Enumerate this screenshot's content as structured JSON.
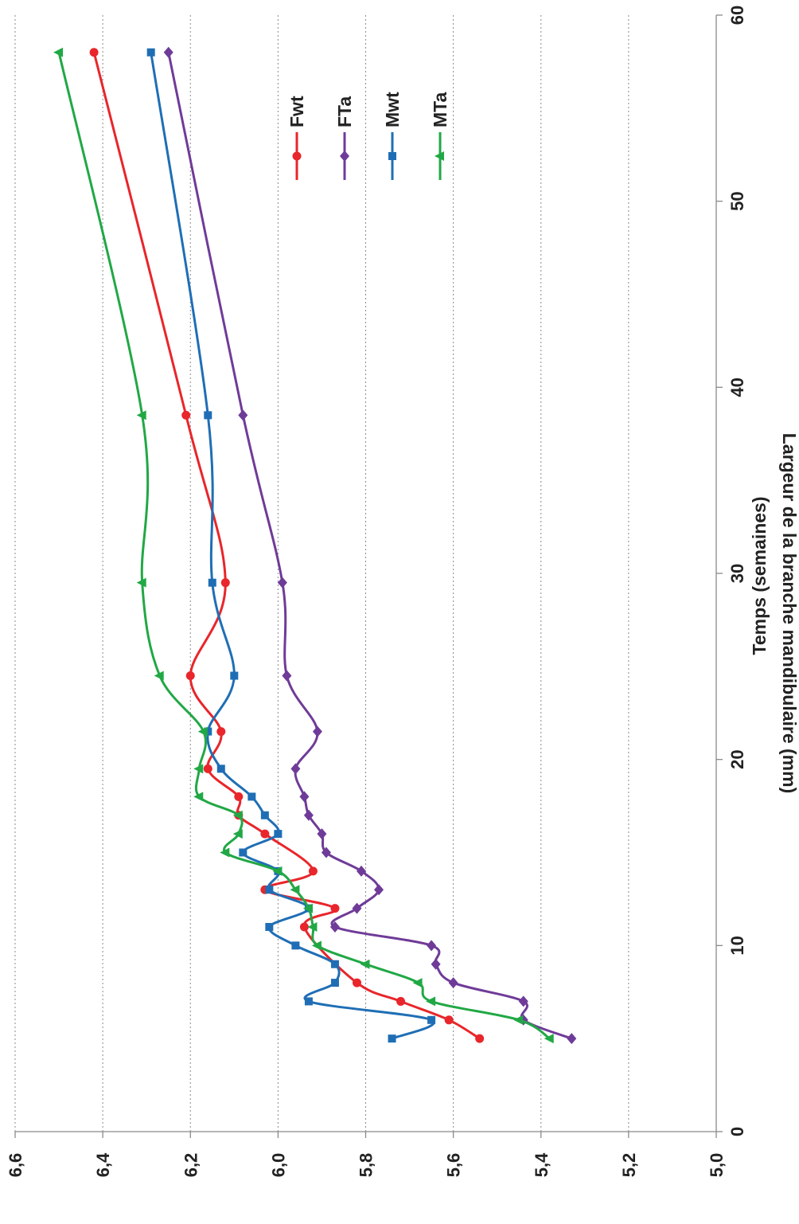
{
  "chart_data": {
    "type": "line",
    "orientation": "rotated-90-clockwise",
    "xlabel": "Temps (semaines)",
    "ylabel": "Largeur de la branche mandibulaire (mm)",
    "xlim": [
      0,
      60
    ],
    "ylim": [
      5.0,
      6.6
    ],
    "x_ticks": [
      "0",
      "10",
      "20",
      "30",
      "40",
      "50",
      "60"
    ],
    "y_ticks": [
      "5,0",
      "5,2",
      "5,4",
      "5,6",
      "5,8",
      "6,0",
      "6,2",
      "6,4",
      "6,6"
    ],
    "grid": "horizontal dotted",
    "legend_position": "top-right",
    "series": [
      {
        "name": "Fwt",
        "color": "#e8262b",
        "marker": "circle",
        "x": [
          5,
          6,
          7,
          8,
          11,
          12,
          13,
          14,
          16,
          17,
          18,
          19.5,
          21.5,
          24.5,
          29.5,
          38.5,
          58
        ],
        "y": [
          5.54,
          5.61,
          5.72,
          5.82,
          5.94,
          5.87,
          6.03,
          5.92,
          6.03,
          6.09,
          6.09,
          6.16,
          6.13,
          6.2,
          6.12,
          6.21,
          6.42
        ]
      },
      {
        "name": "FTa",
        "color": "#6f3b98",
        "marker": "diamond",
        "x": [
          5,
          6,
          7,
          8,
          9,
          10,
          11,
          12,
          13,
          14,
          15,
          16,
          17,
          18,
          19.5,
          21.5,
          24.5,
          29.5,
          38.5,
          58
        ],
        "y": [
          5.33,
          5.44,
          5.44,
          5.6,
          5.64,
          5.65,
          5.87,
          5.82,
          5.77,
          5.81,
          5.89,
          5.9,
          5.93,
          5.94,
          5.96,
          5.91,
          5.98,
          5.99,
          6.08,
          6.25
        ]
      },
      {
        "name": "Mwt",
        "color": "#1f6eb5",
        "marker": "square",
        "x": [
          5,
          6,
          7,
          8,
          9,
          10,
          11,
          12,
          13,
          14,
          15,
          16,
          17,
          18,
          19.5,
          21.5,
          24.5,
          29.5,
          38.5,
          58
        ],
        "y": [
          5.74,
          5.65,
          5.93,
          5.87,
          5.87,
          5.96,
          6.02,
          5.93,
          6.02,
          6.0,
          6.08,
          6.0,
          6.03,
          6.06,
          6.13,
          6.16,
          6.1,
          6.15,
          6.16,
          6.29
        ]
      },
      {
        "name": "MTa",
        "color": "#21a845",
        "marker": "triangle",
        "x": [
          5,
          6,
          7,
          8,
          9,
          10,
          11,
          12,
          13,
          14,
          15,
          16,
          17,
          18,
          19.5,
          21.5,
          24.5,
          29.5,
          38.5,
          58
        ],
        "y": [
          5.38,
          5.45,
          5.65,
          5.68,
          5.8,
          5.91,
          5.92,
          5.93,
          5.96,
          6.0,
          6.12,
          6.09,
          6.09,
          6.18,
          6.18,
          6.17,
          6.27,
          6.31,
          6.31,
          6.5
        ]
      }
    ]
  }
}
